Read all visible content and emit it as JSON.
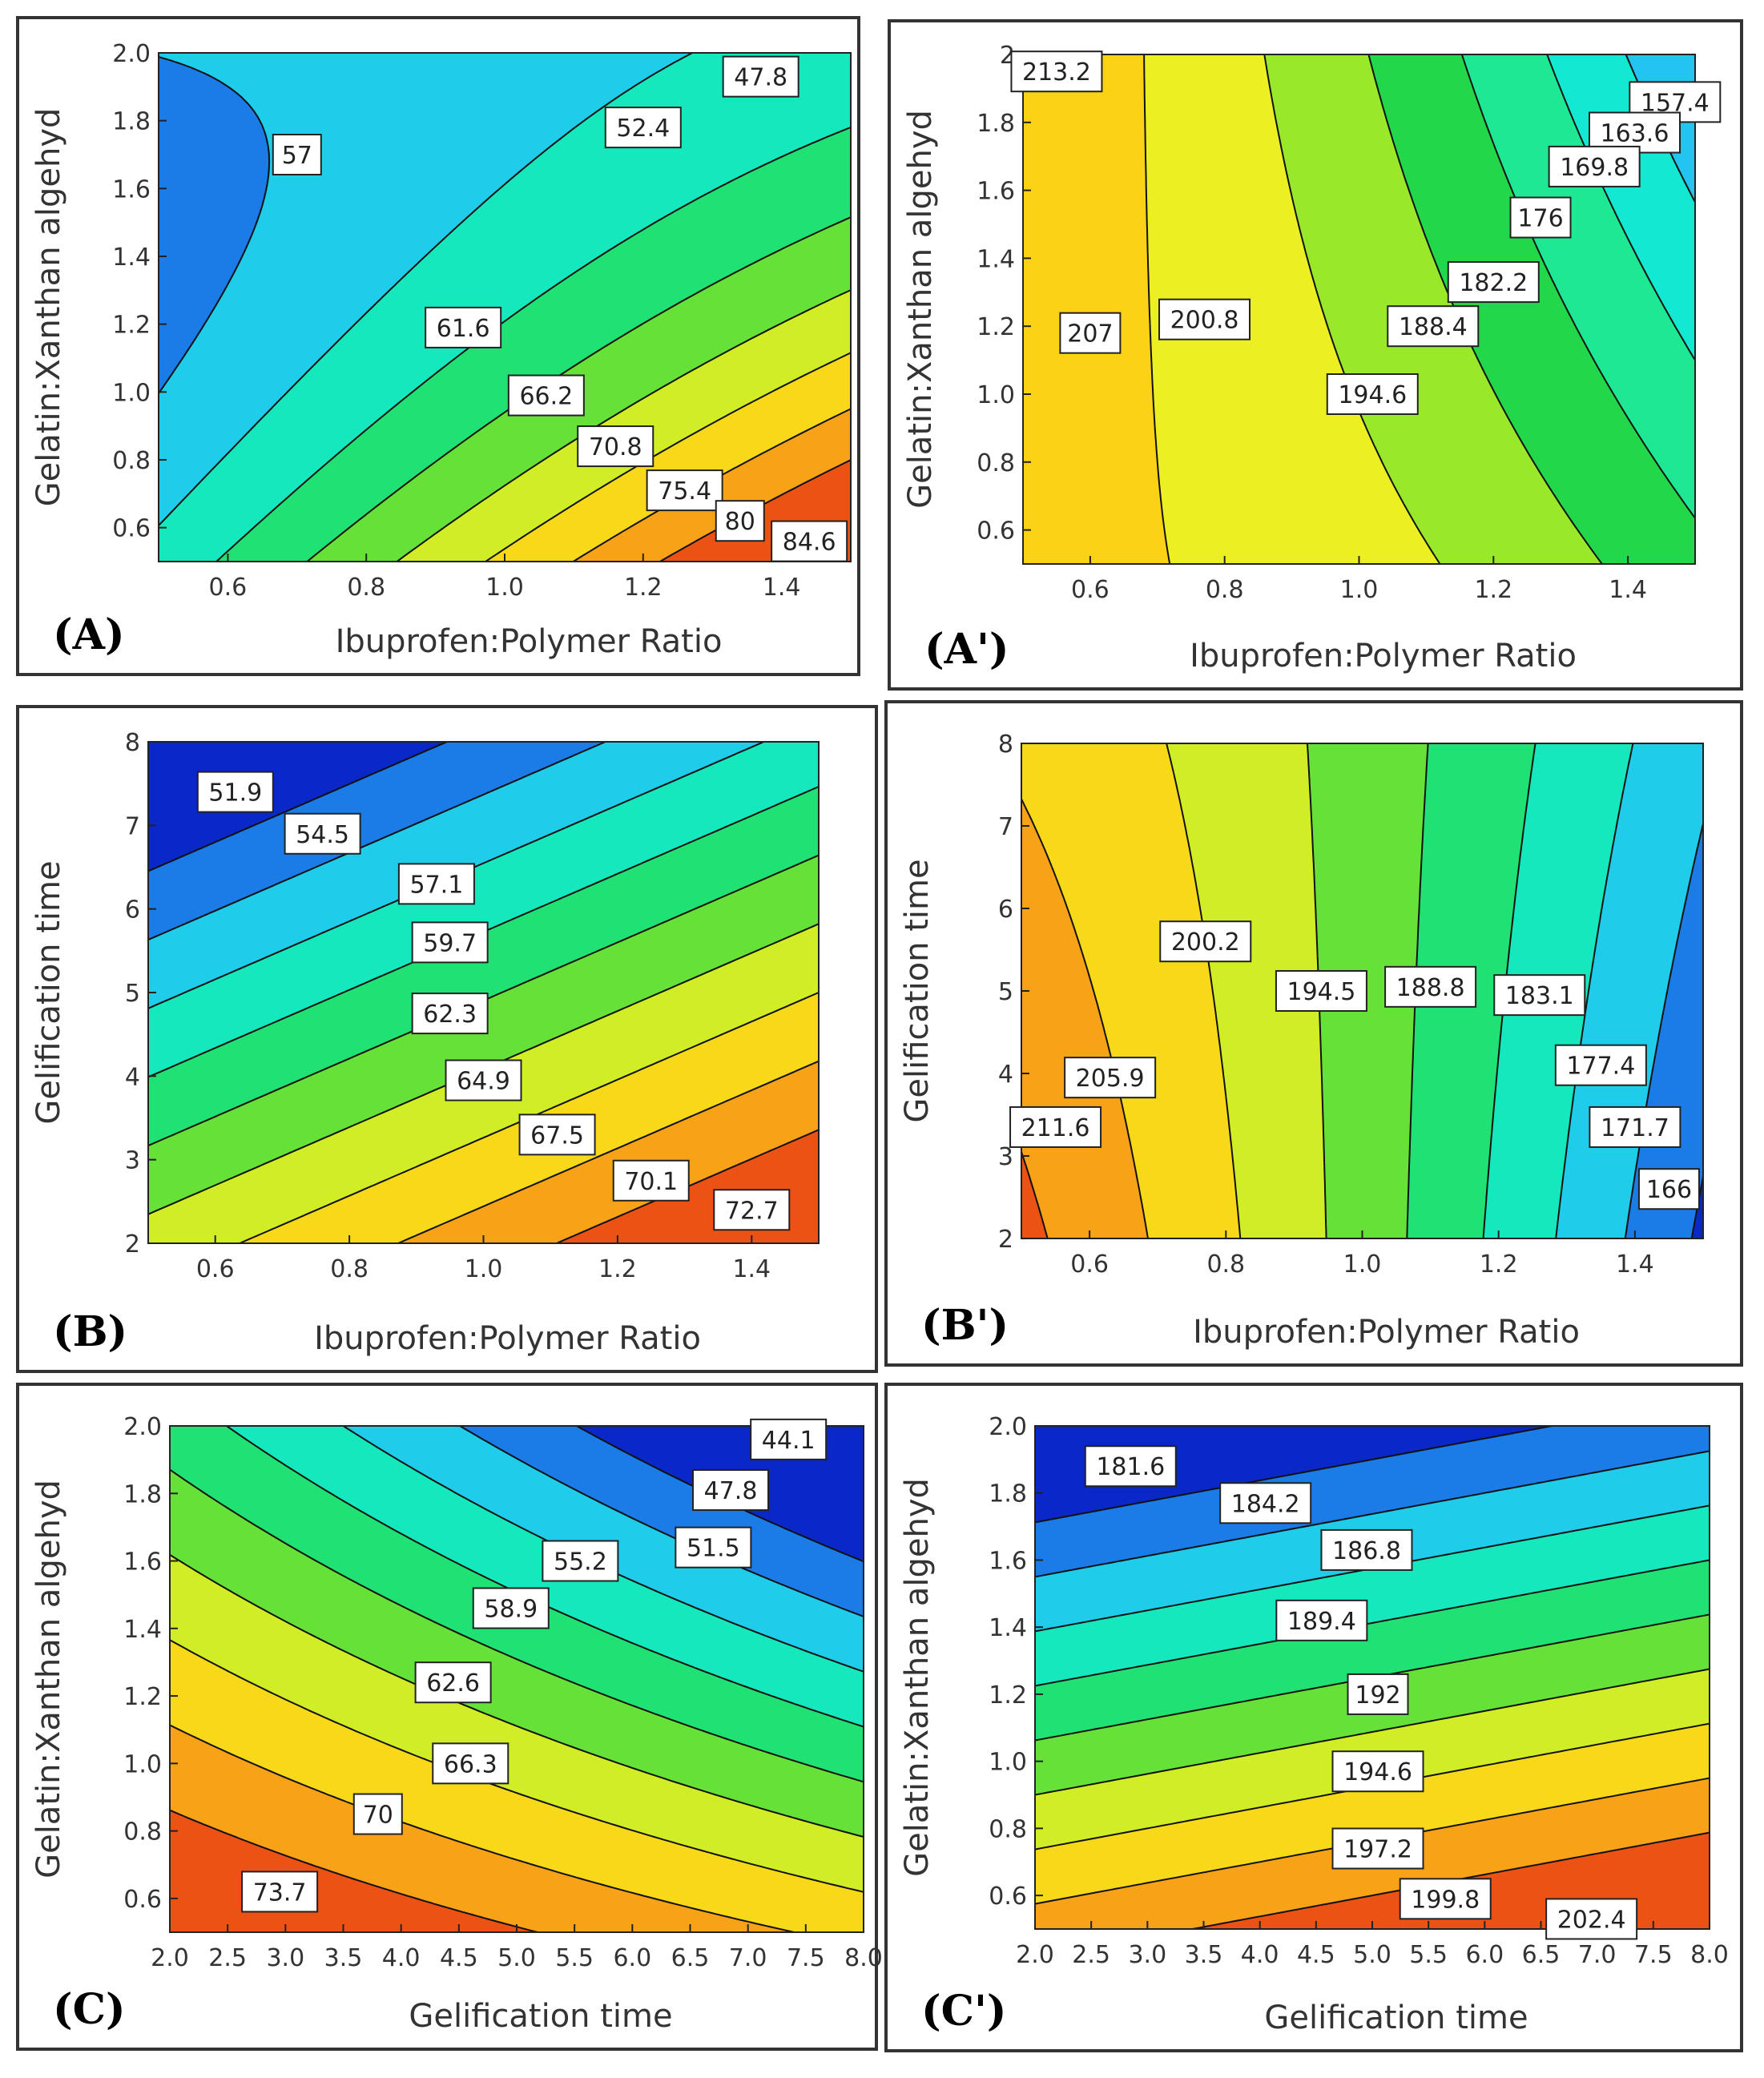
{
  "colors": {
    "ramp": [
      "#0a28c8",
      "#1a72e6",
      "#23c4f0",
      "#12e8d2",
      "#1ee894",
      "#22d84a",
      "#9ae82a",
      "#ecf022",
      "#fcd216",
      "#f79c18",
      "#ec5214"
    ],
    "panel_border": "#333333",
    "contour_line": "#111111"
  },
  "chart_data": [
    {
      "id": "A",
      "type": "heatmap",
      "panel_label": "(A)",
      "xlabel": "Ibuprofen:Polymer Ratio",
      "ylabel": "Gelatin:Xanthan algehyd",
      "xlim": [
        0.5,
        1.5
      ],
      "ylim": [
        0.5,
        2.0
      ],
      "xticks": [
        "0.6",
        "0.8",
        "1.0",
        "1.2",
        "1.4"
      ],
      "yticks": [
        "0.6",
        "0.8",
        "1.0",
        "1.2",
        "1.4",
        "1.6",
        "1.8",
        "2.0"
      ],
      "model": {
        "b0": 61.0,
        "bx": 10.6,
        "by": -10.6,
        "bxy": -7.5,
        "bxx": 0.4,
        "byy": 4.8
      },
      "contour_levels": [
        47.8,
        52.4,
        57,
        61.6,
        66.2,
        70.8,
        75.4,
        80,
        84.6
      ],
      "labels": [
        {
          "text": "47.8",
          "x": 1.37,
          "y": 1.93
        },
        {
          "text": "52.4",
          "x": 1.2,
          "y": 1.78
        },
        {
          "text": "57",
          "x": 0.7,
          "y": 1.7
        },
        {
          "text": "61.6",
          "x": 0.94,
          "y": 1.19
        },
        {
          "text": "66.2",
          "x": 1.06,
          "y": 0.99
        },
        {
          "text": "70.8",
          "x": 1.16,
          "y": 0.84
        },
        {
          "text": "75.4",
          "x": 1.26,
          "y": 0.71
        },
        {
          "text": "80",
          "x": 1.34,
          "y": 0.62
        },
        {
          "text": "84.6",
          "x": 1.44,
          "y": 0.56
        }
      ]
    },
    {
      "id": "A2",
      "type": "heatmap",
      "panel_label": "(A')",
      "xlabel": "Ibuprofen:Polymer Ratio",
      "ylabel": "Gelatin:Xanthan algehyd",
      "xlim": [
        0.5,
        1.5
      ],
      "ylim": [
        0.5,
        2.0
      ],
      "xticks": [
        "0.6",
        "0.8",
        "1.0",
        "1.2",
        "1.4"
      ],
      "yticks": [
        "0.6",
        "0.8",
        "1.0",
        "1.2",
        "1.4",
        "1.6",
        "1.8",
        "2"
      ],
      "model": {
        "b0": 193.0,
        "bx": -15.0,
        "by": -4.0,
        "bxy": -6.0,
        "bxx": -4.0,
        "byy": 0.0
      },
      "contour_levels": [
        157.4,
        163.6,
        169.8,
        176,
        182.2,
        188.4,
        194.6,
        200.8,
        207,
        213.2
      ],
      "labels": [
        {
          "text": "213.2",
          "x": 0.55,
          "y": 1.95
        },
        {
          "text": "157.4",
          "x": 1.47,
          "y": 1.86
        },
        {
          "text": "163.6",
          "x": 1.41,
          "y": 1.77
        },
        {
          "text": "169.8",
          "x": 1.35,
          "y": 1.67
        },
        {
          "text": "176",
          "x": 1.27,
          "y": 1.52
        },
        {
          "text": "182.2",
          "x": 1.2,
          "y": 1.33
        },
        {
          "text": "188.4",
          "x": 1.11,
          "y": 1.2
        },
        {
          "text": "207",
          "x": 0.6,
          "y": 1.18
        },
        {
          "text": "200.8",
          "x": 0.77,
          "y": 1.22
        },
        {
          "text": "194.6",
          "x": 1.02,
          "y": 1.0
        }
      ]
    },
    {
      "id": "B",
      "type": "heatmap",
      "panel_label": "(B)",
      "xlabel": "Ibuprofen:Polymer Ratio",
      "ylabel": "Gelification time",
      "xlim": [
        0.5,
        1.5
      ],
      "ylim": [
        2,
        8
      ],
      "xticks": [
        "0.6",
        "0.8",
        "1.0",
        "1.2",
        "1.4"
      ],
      "yticks": [
        "2",
        "3",
        "4",
        "5",
        "6",
        "7",
        "8"
      ],
      "model": {
        "b0": 62.0,
        "bx": 5.5,
        "by": -9.5,
        "bxy": 0.0,
        "bxx": 0.0,
        "byy": 0.0
      },
      "contour_levels": [
        51.9,
        54.5,
        57.1,
        59.7,
        62.3,
        64.9,
        67.5,
        70.1,
        72.7
      ],
      "labels": [
        {
          "text": "51.9",
          "x": 0.63,
          "y": 7.4
        },
        {
          "text": "54.5",
          "x": 0.76,
          "y": 6.9
        },
        {
          "text": "57.1",
          "x": 0.93,
          "y": 6.3
        },
        {
          "text": "59.7",
          "x": 0.95,
          "y": 5.6
        },
        {
          "text": "62.3",
          "x": 0.95,
          "y": 4.75
        },
        {
          "text": "64.9",
          "x": 1.0,
          "y": 3.95
        },
        {
          "text": "67.5",
          "x": 1.11,
          "y": 3.3
        },
        {
          "text": "70.1",
          "x": 1.25,
          "y": 2.75
        },
        {
          "text": "72.7",
          "x": 1.4,
          "y": 2.4
        }
      ]
    },
    {
      "id": "B2",
      "type": "heatmap",
      "panel_label": "(B')",
      "xlabel": "Ibuprofen:Polymer Ratio",
      "ylabel": "Gelification time",
      "xlim": [
        0.5,
        1.5
      ],
      "ylim": [
        2,
        8
      ],
      "xticks": [
        "0.6",
        "0.8",
        "1.0",
        "1.2",
        "1.4"
      ],
      "yticks": [
        "2",
        "3",
        "4",
        "5",
        "6",
        "7",
        "8"
      ],
      "model": {
        "b0": 192.0,
        "bx": -20.0,
        "by": 0.0,
        "bxy": 4.0,
        "bxx": -3.0,
        "byy": 0.0
      },
      "contour_levels": [
        166,
        171.7,
        177.4,
        183.1,
        188.8,
        194.5,
        200.2,
        205.9,
        211.6
      ],
      "labels": [
        {
          "text": "200.2",
          "x": 0.77,
          "y": 5.6
        },
        {
          "text": "194.5",
          "x": 0.94,
          "y": 5.0
        },
        {
          "text": "188.8",
          "x": 1.1,
          "y": 5.05
        },
        {
          "text": "183.1",
          "x": 1.26,
          "y": 4.95
        },
        {
          "text": "177.4",
          "x": 1.35,
          "y": 4.1
        },
        {
          "text": "205.9",
          "x": 0.63,
          "y": 3.95
        },
        {
          "text": "211.6",
          "x": 0.55,
          "y": 3.35
        },
        {
          "text": "171.7",
          "x": 1.4,
          "y": 3.35
        },
        {
          "text": "166",
          "x": 1.45,
          "y": 2.6
        }
      ]
    },
    {
      "id": "C",
      "type": "heatmap",
      "panel_label": "(C)",
      "xlabel": "Gelification time",
      "ylabel": "Gelatin:Xanthan algehyd",
      "xlim": [
        2.0,
        8.0
      ],
      "ylim": [
        0.5,
        2.0
      ],
      "xticks": [
        "2.0",
        "2.5",
        "3.0",
        "3.5",
        "4.0",
        "4.5",
        "5.0",
        "5.5",
        "6.0",
        "6.5",
        "7.0",
        "7.5",
        "8.0"
      ],
      "yticks": [
        "0.6",
        "0.8",
        "1.0",
        "1.2",
        "1.4",
        "1.6",
        "1.8",
        "2.0"
      ],
      "model": {
        "b0": 60.0,
        "bx": -8.0,
        "by": -14.0,
        "bxy": -3.0,
        "bxx": 0.0,
        "byy": 0.0
      },
      "contour_levels": [
        44.1,
        47.8,
        51.5,
        55.2,
        58.9,
        62.6,
        66.3,
        70,
        73.7
      ],
      "labels": [
        {
          "text": "44.1",
          "x": 7.35,
          "y": 1.96
        },
        {
          "text": "47.8",
          "x": 6.85,
          "y": 1.81
        },
        {
          "text": "51.5",
          "x": 6.7,
          "y": 1.64
        },
        {
          "text": "55.2",
          "x": 5.55,
          "y": 1.6
        },
        {
          "text": "58.9",
          "x": 4.95,
          "y": 1.46
        },
        {
          "text": "62.6",
          "x": 4.45,
          "y": 1.24
        },
        {
          "text": "66.3",
          "x": 4.6,
          "y": 1.0
        },
        {
          "text": "70",
          "x": 3.8,
          "y": 0.85
        },
        {
          "text": "73.7",
          "x": 2.95,
          "y": 0.62
        }
      ]
    },
    {
      "id": "C2",
      "type": "heatmap",
      "panel_label": "(C')",
      "xlabel": "Gelification time",
      "ylabel": "Gelatin:Xanthan algehyd",
      "xlim": [
        2.0,
        8.0
      ],
      "ylim": [
        0.5,
        2.0
      ],
      "xticks": [
        "2.0",
        "2.5",
        "3.0",
        "3.5",
        "4.0",
        "4.5",
        "5.0",
        "5.5",
        "6.0",
        "6.5",
        "7.0",
        "7.5",
        "8.0"
      ],
      "yticks": [
        "0.6",
        "0.8",
        "1.0",
        "1.2",
        "1.4",
        "1.6",
        "1.8",
        "2.0"
      ],
      "model": {
        "b0": 192.0,
        "bx": 3.0,
        "by": -12.0,
        "bxy": 0.0,
        "bxx": 0.0,
        "byy": 0.0
      },
      "contour_levels": [
        181.6,
        184.2,
        186.8,
        189.4,
        192,
        194.6,
        197.2,
        199.8,
        202.4
      ],
      "labels": [
        {
          "text": "181.6",
          "x": 2.85,
          "y": 1.88
        },
        {
          "text": "184.2",
          "x": 4.05,
          "y": 1.77
        },
        {
          "text": "186.8",
          "x": 4.95,
          "y": 1.63
        },
        {
          "text": "189.4",
          "x": 4.55,
          "y": 1.42
        },
        {
          "text": "192",
          "x": 5.05,
          "y": 1.2
        },
        {
          "text": "194.6",
          "x": 5.05,
          "y": 0.97
        },
        {
          "text": "197.2",
          "x": 5.05,
          "y": 0.74
        },
        {
          "text": "199.8",
          "x": 5.65,
          "y": 0.59
        },
        {
          "text": "202.4",
          "x": 6.95,
          "y": 0.53
        }
      ]
    }
  ]
}
